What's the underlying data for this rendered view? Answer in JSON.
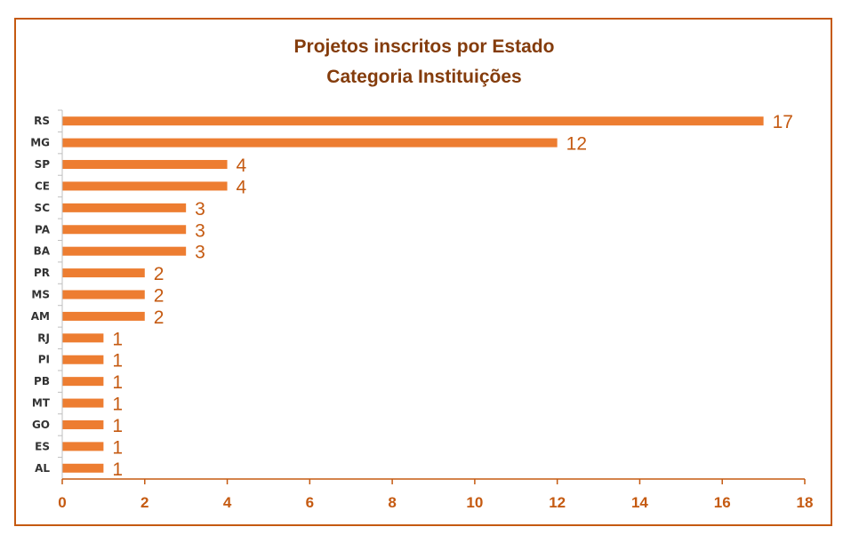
{
  "colors": {
    "bar": "#ed7d31",
    "title": "#843c0c",
    "axis": "#c55a11",
    "frame": "#c55a11",
    "category_text": "#333333"
  },
  "chart_data": {
    "type": "bar",
    "orientation": "horizontal",
    "title": "Projetos inscritos por Estado",
    "subtitle": "Categoria Instituições",
    "categories": [
      "RS",
      "MG",
      "SP",
      "CE",
      "SC",
      "PA",
      "BA",
      "PR",
      "MS",
      "AM",
      "RJ",
      "PI",
      "PB",
      "MT",
      "GO",
      "ES",
      "AL"
    ],
    "values": [
      17,
      12,
      4,
      4,
      3,
      3,
      3,
      2,
      2,
      2,
      1,
      1,
      1,
      1,
      1,
      1,
      1
    ],
    "xlim": [
      0,
      18
    ],
    "x_ticks": [
      0,
      2,
      4,
      6,
      8,
      10,
      12,
      14,
      16,
      18
    ],
    "data_labels": true,
    "grid": false,
    "legend": "none"
  }
}
